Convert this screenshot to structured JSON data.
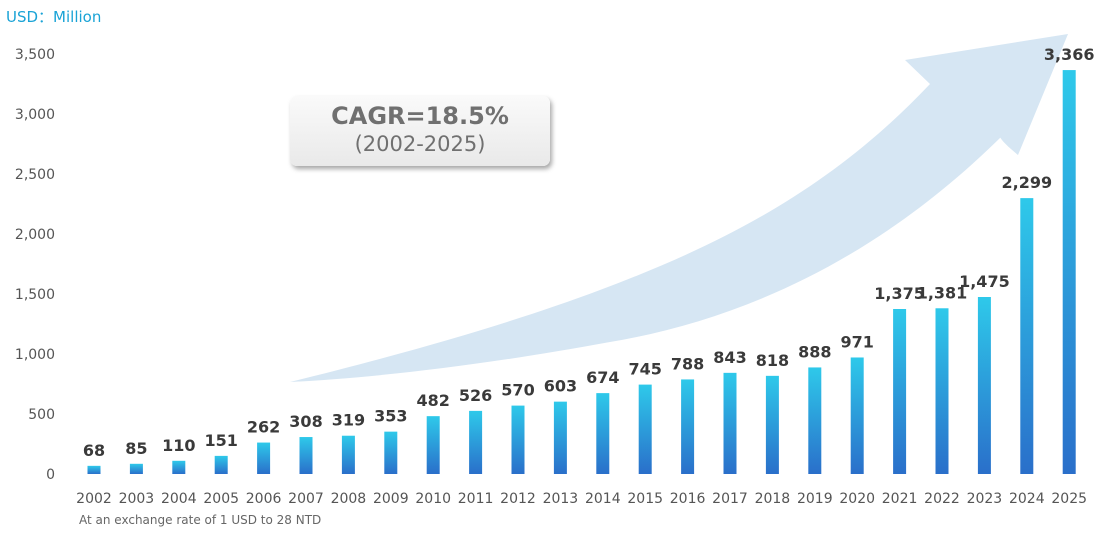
{
  "header": {
    "unit_label": "USD：Million"
  },
  "callout": {
    "cagr": "CAGR=18.5%",
    "period": "(2002-2025)"
  },
  "footnote": "At an exchange rate of 1 USD to 28 NTD",
  "colors": {
    "bar_top": "#2ec9ea",
    "bar_bottom": "#2a6fca",
    "arrow": "#d6e6f3",
    "label": "#3a3a3a",
    "axis_text": "#555555",
    "unit_text": "#1aa3d6"
  },
  "chart_data": {
    "type": "bar",
    "title": "",
    "xlabel": "",
    "ylabel": "USD：Million",
    "ylim": [
      0,
      3500
    ],
    "yticks": [
      0,
      500,
      1000,
      1500,
      2000,
      2500,
      3000,
      3500
    ],
    "ytick_labels": [
      "0",
      "500",
      "1,000",
      "1,500",
      "2,000",
      "2,500",
      "3,000",
      "3,500"
    ],
    "grid": false,
    "categories": [
      "2002",
      "2003",
      "2004",
      "2005",
      "2006",
      "2007",
      "2008",
      "2009",
      "2010",
      "2011",
      "2012",
      "2013",
      "2014",
      "2015",
      "2016",
      "2017",
      "2018",
      "2019",
      "2020",
      "2021",
      "2022",
      "2023",
      "2024",
      "2025"
    ],
    "values": [
      68,
      85,
      110,
      151,
      262,
      308,
      319,
      353,
      482,
      526,
      570,
      603,
      674,
      745,
      788,
      843,
      818,
      888,
      971,
      1375,
      1381,
      1475,
      2299,
      3366
    ],
    "value_labels": [
      "68",
      "85",
      "110",
      "151",
      "262",
      "308",
      "319",
      "353",
      "482",
      "526",
      "570",
      "603",
      "674",
      "745",
      "788",
      "843",
      "818",
      "888",
      "971",
      "1,375",
      "1,381",
      "1,475",
      "2,299",
      "3,366"
    ]
  }
}
